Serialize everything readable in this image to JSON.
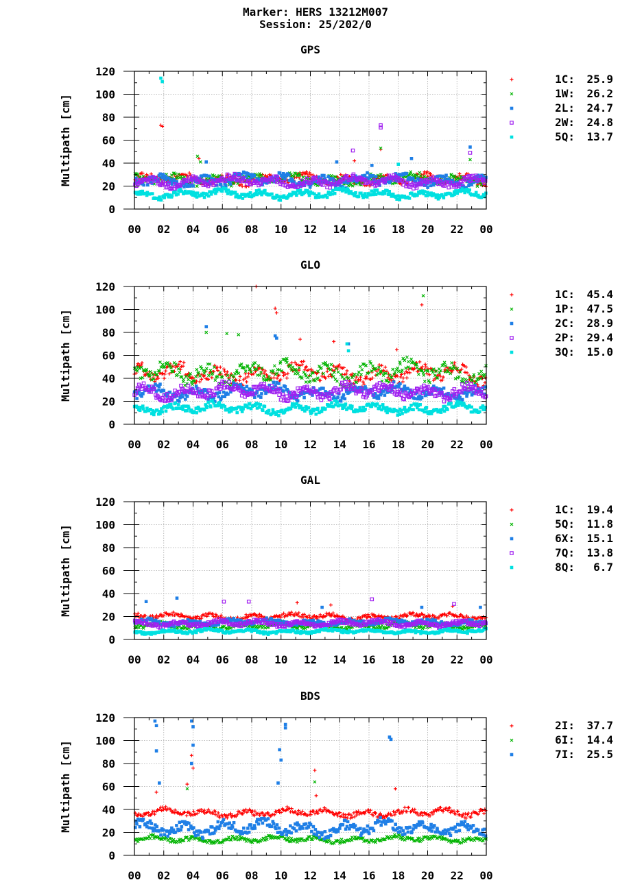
{
  "header": {
    "marker": "Marker: HERS 13212M007",
    "session": "Session: 25/202/0"
  },
  "chart_data": [
    {
      "type": "scatter",
      "title": "GPS",
      "ylabel": "Multipath [cm]",
      "xlabel": "",
      "xlim": [
        0,
        24
      ],
      "ylim": [
        0,
        120
      ],
      "grid": true,
      "legend_position": "right",
      "x_ticks": [
        "00",
        "02",
        "04",
        "06",
        "08",
        "10",
        "12",
        "14",
        "16",
        "18",
        "20",
        "22",
        "00"
      ],
      "y_ticks": [
        "0",
        "20",
        "40",
        "60",
        "80",
        "100",
        "120"
      ],
      "series": [
        {
          "name": "1C",
          "stat": "25.9",
          "color": "#ff0000",
          "marker": "plus",
          "base": 26,
          "spread": 5,
          "outliers": [
            [
              1.8,
              73
            ],
            [
              1.9,
              72
            ],
            [
              4.4,
              44
            ],
            [
              15.0,
              42
            ],
            [
              16.8,
              52
            ]
          ]
        },
        {
          "name": "1W",
          "stat": "26.2",
          "color": "#00b400",
          "marker": "cross",
          "base": 26,
          "spread": 5,
          "outliers": [
            [
              4.3,
              46
            ],
            [
              4.5,
              41
            ],
            [
              16.8,
              53
            ],
            [
              22.9,
              43
            ]
          ]
        },
        {
          "name": "2L",
          "stat": "24.7",
          "color": "#1f7fe6",
          "marker": "square",
          "base": 25,
          "spread": 6,
          "outliers": [
            [
              4.9,
              41
            ],
            [
              13.8,
              41
            ],
            [
              18.9,
              44
            ],
            [
              22.9,
              54
            ],
            [
              16.2,
              38
            ]
          ]
        },
        {
          "name": "2W",
          "stat": "24.8",
          "color": "#a020f0",
          "marker": "hollow-square",
          "base": 24,
          "spread": 5,
          "outliers": [
            [
              14.9,
              51
            ],
            [
              16.8,
              71
            ],
            [
              22.9,
              49
            ],
            [
              16.8,
              73
            ]
          ]
        },
        {
          "name": "5Q",
          "stat": "13.7",
          "color": "#00e0e0",
          "marker": "square",
          "base": 13,
          "spread": 4,
          "outliers": [
            [
              1.8,
              114
            ],
            [
              1.9,
              111
            ],
            [
              18.0,
              39
            ]
          ]
        }
      ]
    },
    {
      "type": "scatter",
      "title": "GLO",
      "ylabel": "Multipath [cm]",
      "xlabel": "",
      "xlim": [
        0,
        24
      ],
      "ylim": [
        0,
        120
      ],
      "grid": true,
      "legend_position": "right",
      "x_ticks": [
        "00",
        "02",
        "04",
        "06",
        "08",
        "10",
        "12",
        "14",
        "16",
        "18",
        "20",
        "22",
        "00"
      ],
      "y_ticks": [
        "0",
        "20",
        "40",
        "60",
        "80",
        "100",
        "120"
      ],
      "series": [
        {
          "name": "1C",
          "stat": "45.4",
          "color": "#ff0000",
          "marker": "plus",
          "base": 44,
          "spread": 9,
          "outliers": [
            [
              8.3,
              120
            ],
            [
              9.6,
              101
            ],
            [
              9.7,
              97
            ],
            [
              19.6,
              104
            ],
            [
              11.3,
              74
            ],
            [
              13.6,
              72
            ],
            [
              17.9,
              65
            ]
          ]
        },
        {
          "name": "1P",
          "stat": "47.5",
          "color": "#00b400",
          "marker": "cross",
          "base": 45,
          "spread": 10,
          "outliers": [
            [
              19.7,
              112
            ],
            [
              4.9,
              80
            ],
            [
              6.3,
              79
            ],
            [
              7.1,
              78
            ]
          ]
        },
        {
          "name": "2C",
          "stat": "28.9",
          "color": "#1f7fe6",
          "marker": "square",
          "base": 28,
          "spread": 7,
          "outliers": [
            [
              4.9,
              85
            ],
            [
              9.6,
              77
            ],
            [
              9.7,
              75
            ],
            [
              14.6,
              70
            ]
          ]
        },
        {
          "name": "2P",
          "stat": "29.4",
          "color": "#a020f0",
          "marker": "hollow-square",
          "base": 29,
          "spread": 7,
          "outliers": []
        },
        {
          "name": "3Q",
          "stat": "15.0",
          "color": "#00e0e0",
          "marker": "square",
          "base": 14,
          "spread": 5,
          "outliers": [
            [
              14.5,
              70
            ],
            [
              14.6,
              64
            ]
          ]
        }
      ]
    },
    {
      "type": "scatter",
      "title": "GAL",
      "ylabel": "Multipath [cm]",
      "xlabel": "",
      "xlim": [
        0,
        24
      ],
      "ylim": [
        0,
        120
      ],
      "grid": true,
      "legend_position": "right",
      "x_ticks": [
        "00",
        "02",
        "04",
        "06",
        "08",
        "10",
        "12",
        "14",
        "16",
        "18",
        "20",
        "22",
        "00"
      ],
      "y_ticks": [
        "0",
        "20",
        "40",
        "60",
        "80",
        "100",
        "120"
      ],
      "series": [
        {
          "name": "1C",
          "stat": "19.4",
          "color": "#ff0000",
          "marker": "plus",
          "base": 20,
          "spread": 3,
          "outliers": [
            [
              11.1,
              32
            ],
            [
              13.4,
              30
            ],
            [
              21.7,
              29
            ]
          ]
        },
        {
          "name": "5Q",
          "stat": "11.8",
          "color": "#00b400",
          "marker": "cross",
          "base": 12,
          "spread": 3,
          "outliers": []
        },
        {
          "name": "6X",
          "stat": "15.1",
          "color": "#1f7fe6",
          "marker": "square",
          "base": 15,
          "spread": 3,
          "outliers": [
            [
              0.8,
              33
            ],
            [
              2.9,
              36
            ],
            [
              12.8,
              28
            ],
            [
              19.6,
              28
            ],
            [
              23.6,
              28
            ]
          ]
        },
        {
          "name": "7Q",
          "stat": "13.8",
          "color": "#a020f0",
          "marker": "hollow-square",
          "base": 14,
          "spread": 3,
          "outliers": [
            [
              6.1,
              33
            ],
            [
              7.8,
              33
            ],
            [
              16.2,
              35
            ],
            [
              21.8,
              31
            ]
          ]
        },
        {
          "name": "8Q",
          "stat": "6.7",
          "color": "#00e0e0",
          "marker": "square",
          "base": 7,
          "spread": 2,
          "outliers": []
        }
      ]
    },
    {
      "type": "scatter",
      "title": "BDS",
      "ylabel": "Multipath [cm]",
      "xlabel": "",
      "xlim": [
        0,
        24
      ],
      "ylim": [
        0,
        120
      ],
      "grid": true,
      "legend_position": "right",
      "x_ticks": [
        "00",
        "02",
        "04",
        "06",
        "08",
        "10",
        "12",
        "14",
        "16",
        "18",
        "20",
        "22",
        "00"
      ],
      "y_ticks": [
        "0",
        "20",
        "40",
        "60",
        "80",
        "100",
        "120"
      ],
      "series": [
        {
          "name": "2I",
          "stat": "37.7",
          "color": "#ff0000",
          "marker": "plus",
          "base": 37,
          "spread": 4,
          "outliers": [
            [
              3.6,
              62
            ],
            [
              3.9,
              87
            ],
            [
              4.0,
              76
            ],
            [
              12.3,
              74
            ],
            [
              12.4,
              52
            ],
            [
              17.8,
              58
            ],
            [
              1.5,
              55
            ]
          ]
        },
        {
          "name": "6I",
          "stat": "14.4",
          "color": "#00b400",
          "marker": "cross",
          "base": 14,
          "spread": 3,
          "outliers": [
            [
              3.6,
              58
            ],
            [
              12.3,
              64
            ]
          ]
        },
        {
          "name": "7I",
          "stat": "25.5",
          "color": "#1f7fe6",
          "marker": "square",
          "base": 24,
          "spread": 7,
          "outliers": [
            [
              1.4,
              117
            ],
            [
              1.5,
              113
            ],
            [
              1.5,
              91
            ],
            [
              3.9,
              117
            ],
            [
              4.0,
              112
            ],
            [
              4.0,
              96
            ],
            [
              3.9,
              80
            ],
            [
              9.9,
              92
            ],
            [
              10.0,
              83
            ],
            [
              10.3,
              114
            ],
            [
              10.3,
              111
            ],
            [
              17.4,
              103
            ],
            [
              17.5,
              101
            ],
            [
              1.7,
              63
            ],
            [
              9.8,
              63
            ]
          ]
        }
      ]
    }
  ]
}
